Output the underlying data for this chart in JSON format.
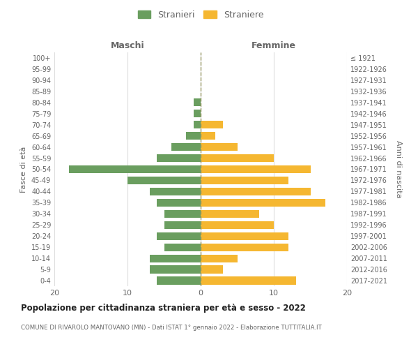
{
  "age_groups": [
    "0-4",
    "5-9",
    "10-14",
    "15-19",
    "20-24",
    "25-29",
    "30-34",
    "35-39",
    "40-44",
    "45-49",
    "50-54",
    "55-59",
    "60-64",
    "65-69",
    "70-74",
    "75-79",
    "80-84",
    "85-89",
    "90-94",
    "95-99",
    "100+"
  ],
  "birth_years": [
    "2017-2021",
    "2012-2016",
    "2007-2011",
    "2002-2006",
    "1997-2001",
    "1992-1996",
    "1987-1991",
    "1982-1986",
    "1977-1981",
    "1972-1976",
    "1967-1971",
    "1962-1966",
    "1957-1961",
    "1952-1956",
    "1947-1951",
    "1942-1946",
    "1937-1941",
    "1932-1936",
    "1927-1931",
    "1922-1926",
    "≤ 1921"
  ],
  "maschi": [
    6,
    7,
    7,
    5,
    6,
    5,
    5,
    6,
    7,
    10,
    18,
    6,
    4,
    2,
    1,
    1,
    1,
    0,
    0,
    0,
    0
  ],
  "femmine": [
    13,
    3,
    5,
    12,
    12,
    10,
    8,
    17,
    15,
    12,
    15,
    10,
    5,
    2,
    3,
    0,
    0,
    0,
    0,
    0,
    0
  ],
  "color_maschi": "#6a9e5f",
  "color_femmine": "#f5b731",
  "title": "Popolazione per cittadinanza straniera per età e sesso - 2022",
  "subtitle": "COMUNE DI RIVAROLO MANTOVANO (MN) - Dati ISTAT 1° gennaio 2022 - Elaborazione TUTTITALIA.IT",
  "ylabel_left": "Fasce di età",
  "ylabel_right": "Anni di nascita",
  "legend_maschi": "Stranieri",
  "legend_femmine": "Straniere",
  "header_left": "Maschi",
  "header_right": "Femmine",
  "xlim": 20,
  "background_color": "#ffffff",
  "grid_color": "#dddddd",
  "text_color": "#666666",
  "title_color": "#222222",
  "subtitle_color": "#666666"
}
